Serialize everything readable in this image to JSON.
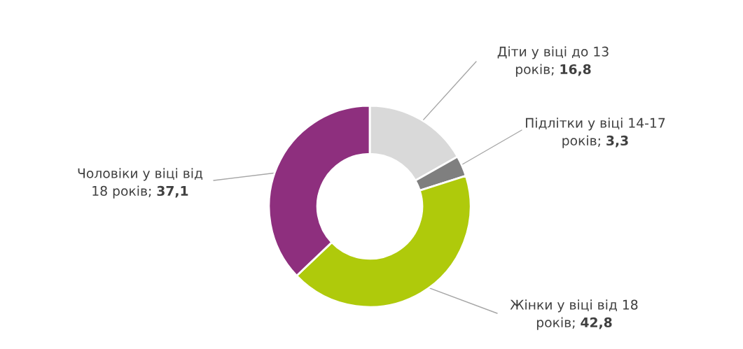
{
  "chart_data": {
    "type": "donut",
    "categories": [
      "Діти у віці до 13 років",
      "Підлітки у віці 14-17 років",
      "Жінки у віці від 18 років",
      "Чоловіки у віці від 18 років"
    ],
    "values": [
      16.8,
      3.3,
      42.8,
      37.1
    ],
    "value_labels": [
      "16,8",
      "3,3",
      "42,8",
      "37,1"
    ],
    "colors": [
      "#d9d9d9",
      "#7f7f7f",
      "#afca0b",
      "#8e2f7e"
    ]
  }
}
